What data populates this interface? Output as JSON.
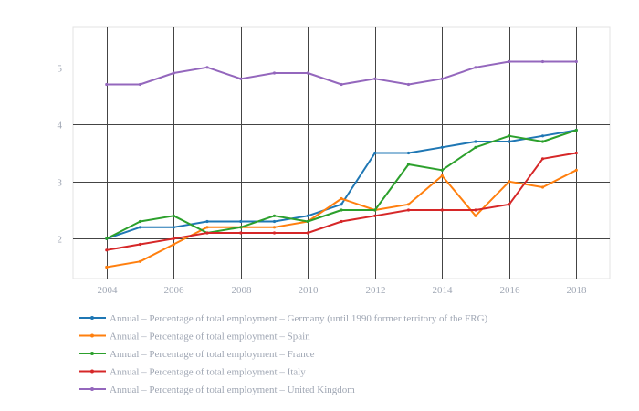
{
  "chart_data": {
    "type": "line",
    "title": "",
    "xlabel": "",
    "ylabel": "",
    "x": [
      2004,
      2005,
      2006,
      2007,
      2008,
      2009,
      2010,
      2011,
      2012,
      2013,
      2014,
      2015,
      2016,
      2017,
      2018
    ],
    "xticks": [
      2004,
      2006,
      2008,
      2010,
      2012,
      2014,
      2016,
      2018
    ],
    "yticks": [
      2,
      3,
      4,
      5
    ],
    "xlim": [
      2003,
      2019
    ],
    "ylim": [
      1.3,
      5.7
    ],
    "grid": true,
    "legend_position": "bottom-left",
    "series": [
      {
        "name": "Annual – Percentage of total employment – Germany (until 1990 former territory of the FRG)",
        "color": "#1f77b4",
        "values": [
          2.0,
          2.2,
          2.2,
          2.3,
          2.3,
          2.3,
          2.4,
          2.6,
          3.5,
          3.5,
          3.6,
          3.7,
          3.7,
          3.8,
          3.9
        ]
      },
      {
        "name": "Annual – Percentage of total employment – Spain",
        "color": "#ff7f0e",
        "values": [
          1.5,
          1.6,
          1.9,
          2.2,
          2.2,
          2.2,
          2.3,
          2.7,
          2.5,
          2.6,
          3.1,
          2.4,
          3.0,
          2.9,
          3.2
        ]
      },
      {
        "name": "Annual – Percentage of total employment – France",
        "color": "#2ca02c",
        "values": [
          2.0,
          2.3,
          2.4,
          2.1,
          2.2,
          2.4,
          2.3,
          2.5,
          2.5,
          3.3,
          3.2,
          3.6,
          3.8,
          3.7,
          3.9
        ]
      },
      {
        "name": "Annual – Percentage of total employment – Italy",
        "color": "#d62728",
        "values": [
          1.8,
          1.9,
          2.0,
          2.1,
          2.1,
          2.1,
          2.1,
          2.3,
          2.4,
          2.5,
          2.5,
          2.5,
          2.6,
          3.4,
          3.5
        ]
      },
      {
        "name": "Annual – Percentage of total employment – United Kingdom",
        "color": "#9467bd",
        "values": [
          4.7,
          4.7,
          4.9,
          5.0,
          4.8,
          4.9,
          4.9,
          4.7,
          4.8,
          4.7,
          4.8,
          5.0,
          5.1,
          5.1,
          5.1
        ]
      }
    ]
  }
}
